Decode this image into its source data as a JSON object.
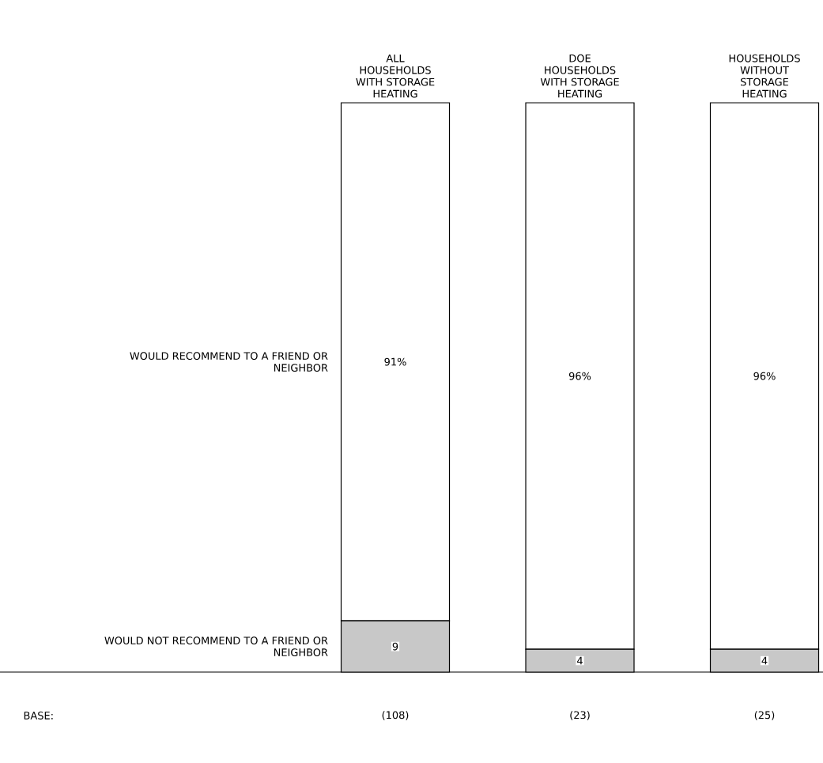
{
  "chart_data": {
    "type": "bar",
    "stacked": true,
    "categories": [
      "ALL HOUSEHOLDS WITH STORAGE HEATING",
      "DOE HOUSEHOLDS WITH STORAGE HEATING",
      "HOUSEHOLDS WITHOUT STORAGE HEATING"
    ],
    "series": [
      {
        "name": "WOULD NOT RECOMMEND TO A FRIEND OR NEIGHBOR",
        "color": "#c8c8c8",
        "values": [
          9,
          4,
          4
        ],
        "value_labels": [
          "9",
          "4",
          "4"
        ]
      },
      {
        "name": "WOULD RECOMMEND TO A FRIEND OR NEIGHBOR",
        "color": "#ffffff",
        "values": [
          91,
          96,
          96
        ],
        "value_labels": [
          "91%",
          "96%",
          "96%"
        ]
      }
    ],
    "annotations": [
      "BASE:",
      "(108)",
      "(23)",
      "(25)"
    ]
  }
}
